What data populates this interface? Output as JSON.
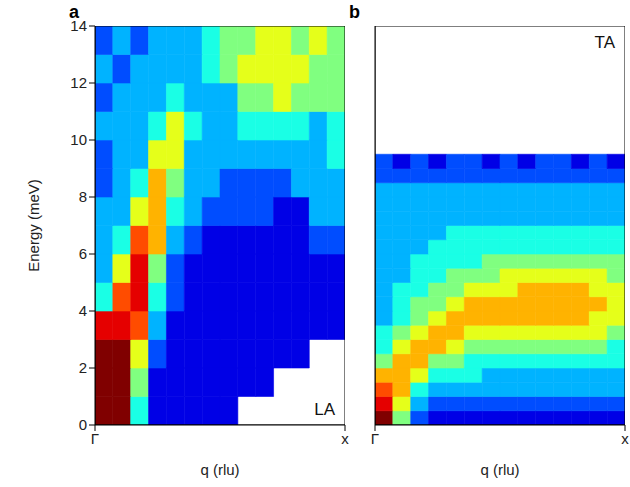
{
  "chart_data": [
    {
      "type": "heatmap",
      "panel_label": "a",
      "annotation": "LA",
      "x_label": "q (rlu)",
      "y_label": "Energy (meV)",
      "xlim": [
        0,
        1
      ],
      "xticks": [
        {
          "value": 0,
          "label": "Γ"
        },
        {
          "value": 1,
          "label": "x"
        }
      ],
      "ylim": [
        0,
        14
      ],
      "yticks": [
        0,
        2,
        4,
        6,
        8,
        10,
        12,
        14
      ],
      "zlim": [
        0,
        10
      ],
      "x_edges": [
        0,
        0.0714,
        0.1429,
        0.2143,
        0.2857,
        0.3571,
        0.4286,
        0.5,
        0.5714,
        0.6429,
        0.7143,
        0.7857,
        0.8571,
        0.9286,
        1
      ],
      "y_edges": [
        0,
        1,
        2,
        3,
        4,
        5,
        6,
        7,
        8,
        9,
        10,
        11,
        12,
        13,
        14
      ],
      "cells": [
        [
          10,
          10,
          4,
          1,
          1,
          1,
          1,
          1,
          null,
          null,
          null,
          null,
          null,
          null
        ],
        [
          10,
          10,
          5,
          1,
          1,
          1,
          1,
          1,
          1,
          1,
          null,
          null,
          null,
          null
        ],
        [
          10,
          10,
          6,
          2,
          1,
          1,
          1,
          1,
          1,
          1,
          1,
          1,
          null,
          null
        ],
        [
          9,
          9,
          8,
          3,
          1,
          1,
          1,
          1,
          1,
          1,
          1,
          1,
          1,
          1
        ],
        [
          4,
          8,
          9,
          4,
          2,
          1,
          1,
          1,
          1,
          1,
          1,
          1,
          1,
          1
        ],
        [
          3,
          6,
          9,
          5,
          2,
          1,
          1,
          1,
          1,
          1,
          1,
          1,
          1,
          1
        ],
        [
          3,
          4,
          8,
          7,
          3,
          2,
          1,
          1,
          1,
          1,
          1,
          1,
          2,
          2
        ],
        [
          3,
          3,
          6,
          7,
          4,
          3,
          2,
          2,
          2,
          2,
          1,
          1,
          3,
          3
        ],
        [
          2,
          3,
          4,
          7,
          5,
          3,
          3,
          2,
          2,
          2,
          2,
          3,
          3,
          3
        ],
        [
          2,
          3,
          3,
          6,
          6,
          3,
          3,
          3,
          3,
          3,
          3,
          3,
          3,
          4
        ],
        [
          3,
          3,
          3,
          4,
          6,
          4,
          3,
          3,
          4,
          4,
          4,
          4,
          3,
          4
        ],
        [
          2,
          3,
          3,
          3,
          4,
          3,
          3,
          3,
          5,
          5,
          6,
          5,
          5,
          5
        ],
        [
          3,
          2,
          3,
          3,
          3,
          3,
          4,
          5,
          6,
          6,
          6,
          6,
          5,
          5
        ],
        [
          2,
          3,
          2,
          3,
          3,
          3,
          4,
          5,
          5,
          6,
          6,
          5,
          6,
          5
        ]
      ]
    },
    {
      "type": "heatmap",
      "panel_label": "b",
      "annotation": "TA",
      "x_label": "q (rlu)",
      "tick_labels": "x",
      "xlim": [
        0,
        1
      ],
      "xticks": [
        {
          "value": 0,
          "label": "Γ"
        },
        {
          "value": 1,
          "label": "x"
        }
      ],
      "ylim": [
        0,
        14
      ],
      "zlim": [
        0,
        10
      ],
      "x_edges": [
        0,
        0.0714,
        0.1429,
        0.2143,
        0.2857,
        0.3571,
        0.4286,
        0.5,
        0.5714,
        0.6429,
        0.7143,
        0.7857,
        0.8571,
        0.9286,
        1
      ],
      "y_edges": [
        0,
        0.5,
        1,
        1.5,
        2,
        2.5,
        3,
        3.5,
        4,
        4.5,
        5,
        5.5,
        6,
        6.5,
        7,
        7.5,
        8,
        8.5,
        9,
        9.5
      ],
      "cells": [
        [
          10,
          5,
          2,
          1,
          1,
          1,
          1,
          1,
          1,
          1,
          1,
          1,
          1,
          1
        ],
        [
          9,
          6,
          3,
          2,
          2,
          2,
          2,
          2,
          2,
          2,
          2,
          2,
          2,
          2
        ],
        [
          8,
          7,
          4,
          3,
          3,
          3,
          3,
          3,
          3,
          3,
          3,
          3,
          3,
          3
        ],
        [
          7,
          7,
          6,
          4,
          4,
          4,
          3,
          3,
          3,
          3,
          3,
          3,
          3,
          3
        ],
        [
          5,
          7,
          7,
          5,
          5,
          4,
          4,
          4,
          4,
          4,
          4,
          4,
          4,
          4
        ],
        [
          4,
          6,
          7,
          7,
          6,
          5,
          5,
          5,
          5,
          5,
          5,
          5,
          5,
          4
        ],
        [
          4,
          5,
          6,
          7,
          7,
          6,
          6,
          6,
          6,
          6,
          6,
          6,
          6,
          5
        ],
        [
          3,
          4,
          5,
          6,
          7,
          7,
          7,
          7,
          7,
          7,
          7,
          7,
          6,
          6
        ],
        [
          3,
          4,
          5,
          5,
          6,
          7,
          7,
          7,
          7,
          7,
          7,
          7,
          7,
          6
        ],
        [
          3,
          4,
          4,
          5,
          5,
          6,
          6,
          6,
          7,
          7,
          7,
          7,
          6,
          6
        ],
        [
          3,
          3,
          4,
          4,
          5,
          5,
          5,
          6,
          6,
          6,
          6,
          6,
          6,
          5
        ],
        [
          3,
          3,
          4,
          4,
          4,
          4,
          5,
          5,
          5,
          5,
          5,
          5,
          5,
          5
        ],
        [
          3,
          3,
          3,
          4,
          4,
          4,
          4,
          4,
          4,
          4,
          4,
          4,
          4,
          4
        ],
        [
          3,
          3,
          3,
          3,
          4,
          4,
          4,
          4,
          4,
          4,
          4,
          4,
          4,
          4
        ],
        [
          3,
          3,
          3,
          3,
          3,
          3,
          3,
          3,
          3,
          3,
          3,
          3,
          3,
          3
        ],
        [
          3,
          3,
          3,
          3,
          3,
          3,
          3,
          3,
          3,
          3,
          3,
          3,
          3,
          3
        ],
        [
          3,
          3,
          3,
          3,
          3,
          3,
          3,
          3,
          3,
          3,
          3,
          3,
          3,
          3
        ],
        [
          2,
          2,
          2,
          2,
          2,
          2,
          2,
          2,
          2,
          2,
          2,
          2,
          2,
          2
        ],
        [
          2,
          1,
          2,
          1,
          2,
          2,
          1,
          2,
          1,
          2,
          2,
          1,
          2,
          1
        ]
      ]
    }
  ]
}
